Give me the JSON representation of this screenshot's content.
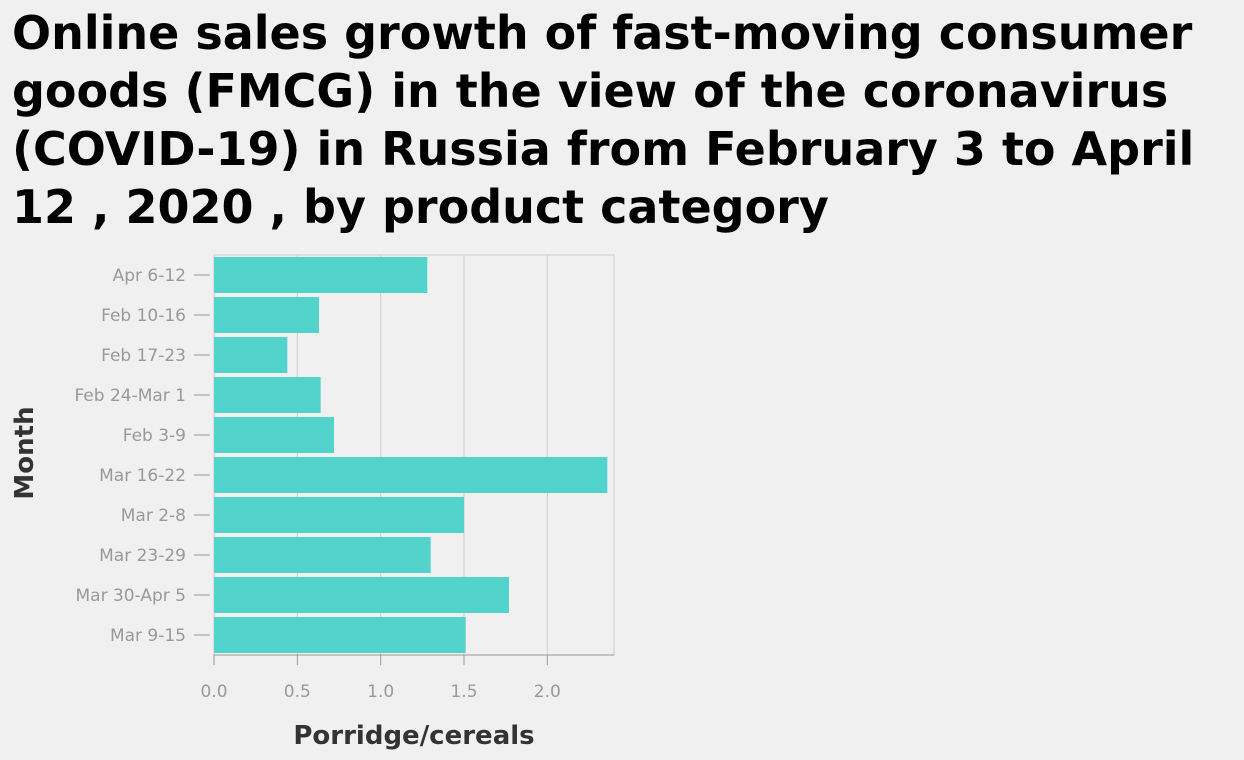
{
  "chart_data": {
    "type": "bar",
    "orientation": "horizontal",
    "title": "Online sales growth of fast-moving consumer goods (FMCG) in the view of the coronavirus (COVID-19) in Russia from February 3 to April 12 , 2020 , by product category",
    "xlabel": "Porridge/cereals",
    "ylabel": "Month",
    "categories": [
      "Apr 6-12",
      "Feb 10-16",
      "Feb 17-23",
      "Feb 24-Mar 1",
      "Feb 3-9",
      "Mar 16-22",
      "Mar 2-8",
      "Mar 23-29",
      "Mar 30-Apr 5",
      "Mar 9-15"
    ],
    "values": [
      1.28,
      0.63,
      0.44,
      0.64,
      0.72,
      2.36,
      1.5,
      1.3,
      1.77,
      1.51
    ],
    "xlim": [
      0,
      2.4
    ],
    "xticks": [
      0,
      0.5,
      1,
      1.5,
      2
    ],
    "xtick_labels": [
      "0.0",
      "0.5",
      "1.0",
      "1.5",
      "2.0"
    ],
    "grid": "vertical",
    "bar_color": "#52d3cc",
    "grid_color": "#cccccc",
    "axis_color": "#999999"
  }
}
